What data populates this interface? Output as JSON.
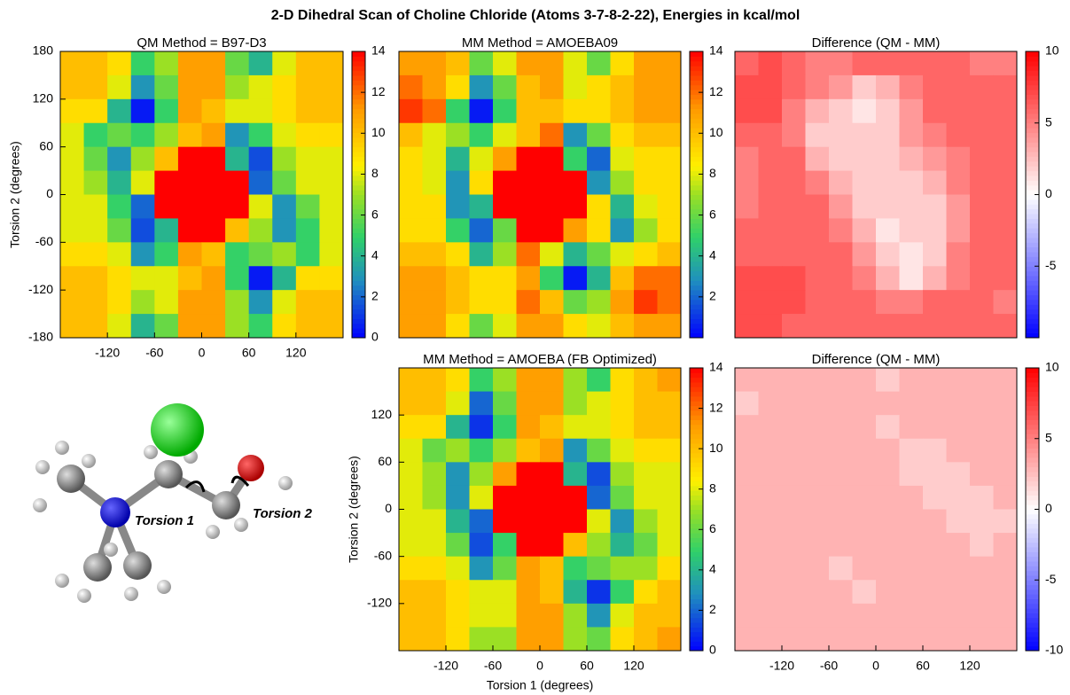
{
  "title": "2-D Dihedral Scan of Choline Chloride (Atoms 3-7-8-2-22), Energies in kcal/mol",
  "annotations": {
    "torsion1": "Torsion 1",
    "torsion2": "Torsion 2"
  },
  "chart_data": [
    {
      "type": "heatmap",
      "title": "QM Method = B97-D3",
      "ylabel": "Torsion 2 (degrees)",
      "colormap": "rainbow",
      "x": [
        -165,
        -135,
        -105,
        -75,
        -45,
        -15,
        15,
        45,
        75,
        105,
        135,
        165
      ],
      "y": [
        165,
        135,
        105,
        75,
        45,
        15,
        -15,
        -45,
        -75,
        -105,
        -135,
        -165
      ],
      "xlim": [
        -180,
        180
      ],
      "ylim": [
        -180,
        180
      ],
      "xticks": [
        -120,
        -60,
        0,
        60,
        120
      ],
      "yticks": [
        -180,
        -120,
        -60,
        0,
        60,
        120,
        180
      ],
      "zlim": [
        0,
        14
      ],
      "zticks": [
        0,
        2,
        4,
        6,
        8,
        10,
        12,
        14
      ],
      "z": [
        [
          10,
          10,
          9,
          5,
          7,
          11,
          11,
          6,
          4,
          8,
          10,
          10
        ],
        [
          10,
          10,
          8,
          3,
          6,
          11,
          11,
          7,
          8,
          9,
          10,
          10
        ],
        [
          9,
          9,
          4,
          0.5,
          5,
          11,
          10,
          8,
          8,
          9,
          10,
          10
        ],
        [
          8,
          5,
          6,
          5,
          7,
          10,
          11,
          3,
          5,
          8,
          9,
          9
        ],
        [
          8,
          6,
          3,
          7,
          10,
          14,
          14,
          4,
          1.5,
          7,
          8,
          8
        ],
        [
          8,
          7,
          4,
          8,
          14,
          14,
          14,
          14,
          2,
          6,
          8,
          8
        ],
        [
          8,
          8,
          5,
          2,
          14,
          14,
          14,
          14,
          8,
          3,
          6,
          8
        ],
        [
          8,
          8,
          6,
          1.5,
          4,
          14,
          14,
          10,
          7,
          3,
          5,
          8
        ],
        [
          9,
          9,
          8,
          3,
          5,
          11,
          10,
          5,
          6,
          7,
          5,
          8
        ],
        [
          10,
          10,
          9,
          8,
          8,
          10,
          11,
          5,
          0.5,
          4,
          9,
          9
        ],
        [
          10,
          10,
          9,
          7,
          8,
          11,
          11,
          7,
          3,
          8,
          10,
          10
        ],
        [
          10,
          10,
          8,
          4,
          6,
          11,
          11,
          7,
          5,
          9,
          10,
          10
        ]
      ]
    },
    {
      "type": "heatmap",
      "title": "MM Method = AMOEBA09",
      "colormap": "rainbow",
      "x": [
        -165,
        -135,
        -105,
        -75,
        -45,
        -15,
        15,
        45,
        75,
        105,
        135,
        165
      ],
      "y": [
        165,
        135,
        105,
        75,
        45,
        15,
        -15,
        -45,
        -75,
        -105,
        -135,
        -165
      ],
      "xlim": [
        -180,
        180
      ],
      "ylim": [
        -180,
        180
      ],
      "zlim": [
        0,
        14
      ],
      "zticks": [
        2,
        4,
        6,
        8,
        10,
        12,
        14
      ],
      "z": [
        [
          11,
          11,
          10,
          6,
          8,
          11,
          11,
          8,
          6,
          9,
          11,
          11
        ],
        [
          12,
          11,
          9,
          3,
          6,
          10,
          11,
          8,
          9,
          10,
          11,
          11
        ],
        [
          13,
          12,
          5,
          0.5,
          5,
          10,
          10,
          9,
          9,
          10,
          11,
          11
        ],
        [
          10,
          8,
          7,
          5,
          8,
          10,
          12,
          3,
          6,
          9,
          10,
          10
        ],
        [
          9,
          8,
          4,
          8,
          11,
          14,
          14,
          5,
          2,
          8,
          9,
          9
        ],
        [
          9,
          8,
          3,
          9,
          14,
          14,
          14,
          14,
          3,
          7,
          9,
          9
        ],
        [
          9,
          9,
          3,
          4,
          14,
          14,
          14,
          14,
          9,
          4,
          8,
          9
        ],
        [
          9,
          9,
          5,
          2,
          6,
          14,
          14,
          11,
          9,
          3,
          7,
          9
        ],
        [
          10,
          10,
          9,
          4,
          7,
          12,
          8,
          4,
          6,
          8,
          9,
          10
        ],
        [
          11,
          11,
          10,
          9,
          9,
          11,
          5,
          0.5,
          4,
          10,
          12,
          12
        ],
        [
          11,
          11,
          10,
          9,
          9,
          12,
          10,
          6,
          7,
          11,
          13,
          12
        ],
        [
          11,
          11,
          9,
          6,
          8,
          11,
          11,
          9,
          8,
          10,
          11,
          11
        ]
      ]
    },
    {
      "type": "heatmap",
      "title": "Difference (QM - MM)",
      "colormap": "diverging",
      "x": [
        -165,
        -135,
        -105,
        -75,
        -45,
        -15,
        15,
        45,
        75,
        105,
        135,
        165
      ],
      "y": [
        165,
        135,
        105,
        75,
        45,
        15,
        -15,
        -45,
        -75,
        -105,
        -135,
        -165
      ],
      "xlim": [
        -180,
        180
      ],
      "ylim": [
        -180,
        180
      ],
      "zlim": [
        -10,
        10
      ],
      "zticks": [
        -5,
        0,
        5,
        10
      ],
      "z": [
        [
          6,
          7,
          6,
          5,
          5,
          6,
          6,
          6,
          6,
          6,
          5,
          5
        ],
        [
          7,
          7,
          6,
          5,
          4,
          2,
          3,
          5,
          6,
          6,
          6,
          6
        ],
        [
          7,
          7,
          5,
          3,
          2,
          1,
          2,
          4,
          6,
          6,
          6,
          6
        ],
        [
          6,
          6,
          5,
          2,
          2,
          2,
          2,
          4,
          5,
          6,
          6,
          6
        ],
        [
          5,
          6,
          6,
          3,
          2,
          2,
          2,
          3,
          4,
          5,
          6,
          6
        ],
        [
          5,
          6,
          6,
          5,
          3,
          2,
          2,
          2,
          3,
          5,
          6,
          6
        ],
        [
          5,
          6,
          6,
          6,
          4,
          2,
          2,
          2,
          2,
          4,
          6,
          6
        ],
        [
          6,
          6,
          6,
          6,
          5,
          3,
          1,
          2,
          2,
          4,
          6,
          6
        ],
        [
          6,
          6,
          6,
          6,
          6,
          4,
          2,
          1,
          2,
          5,
          6,
          6
        ],
        [
          7,
          7,
          7,
          6,
          6,
          5,
          3,
          1,
          3,
          5,
          6,
          6
        ],
        [
          7,
          7,
          7,
          6,
          6,
          6,
          5,
          5,
          6,
          6,
          6,
          5
        ],
        [
          7,
          7,
          6,
          6,
          6,
          6,
          6,
          6,
          6,
          6,
          6,
          6
        ]
      ]
    },
    {
      "type": "heatmap",
      "title": "MM Method = AMOEBA (FB Optimized)",
      "xlabel": "Torsion 1 (degrees)",
      "ylabel": "Torsion 2 (degrees)",
      "colormap": "rainbow",
      "x": [
        -165,
        -135,
        -105,
        -75,
        -45,
        -15,
        15,
        45,
        75,
        105,
        135,
        165
      ],
      "y": [
        165,
        135,
        105,
        75,
        45,
        15,
        -15,
        -45,
        -75,
        -105,
        -135,
        -165
      ],
      "xlim": [
        -180,
        180
      ],
      "ylim": [
        -180,
        180
      ],
      "xticks": [
        -120,
        -60,
        0,
        60,
        120
      ],
      "yticks": [
        -120,
        -60,
        0,
        60,
        120
      ],
      "zlim": [
        0,
        14
      ],
      "zticks": [
        0,
        2,
        4,
        6,
        8,
        10,
        12,
        14
      ],
      "z": [
        [
          10,
          10,
          9,
          5,
          7,
          11,
          11,
          7,
          5,
          9,
          10,
          11
        ],
        [
          10,
          10,
          8,
          2,
          6,
          11,
          11,
          7,
          8,
          9,
          10,
          10
        ],
        [
          9,
          9,
          4,
          1,
          5,
          11,
          10,
          8,
          8,
          9,
          10,
          10
        ],
        [
          8,
          6,
          7,
          5,
          7,
          10,
          11,
          3,
          6,
          8,
          9,
          9
        ],
        [
          8,
          7,
          3,
          7,
          11,
          14,
          14,
          4,
          1.5,
          7,
          8,
          8
        ],
        [
          8,
          7,
          3,
          8,
          14,
          14,
          14,
          14,
          2,
          6,
          8,
          8
        ],
        [
          8,
          8,
          4,
          2,
          14,
          14,
          14,
          14,
          8,
          3,
          7,
          8
        ],
        [
          8,
          8,
          6,
          1.5,
          5,
          14,
          14,
          10,
          7,
          4,
          6,
          8
        ],
        [
          9,
          9,
          8,
          3,
          6,
          11,
          10,
          5,
          6,
          7,
          7,
          9
        ],
        [
          10,
          10,
          9,
          8,
          8,
          11,
          10,
          4,
          1,
          5,
          9,
          10
        ],
        [
          10,
          10,
          9,
          8,
          8,
          11,
          11,
          7,
          3,
          8,
          10,
          10
        ],
        [
          10,
          10,
          9,
          7,
          7,
          11,
          11,
          7,
          6,
          9,
          10,
          11
        ]
      ]
    },
    {
      "type": "heatmap",
      "title": "Difference (QM - MM)",
      "colormap": "diverging",
      "x": [
        -165,
        -135,
        -105,
        -75,
        -45,
        -15,
        15,
        45,
        75,
        105,
        135,
        165
      ],
      "y": [
        165,
        135,
        105,
        75,
        45,
        15,
        -15,
        -45,
        -75,
        -105,
        -135,
        -165
      ],
      "xlim": [
        -180,
        180
      ],
      "ylim": [
        -180,
        180
      ],
      "xticks": [
        -120,
        -60,
        0,
        60,
        120
      ],
      "zlim": [
        -10,
        10
      ],
      "zticks": [
        -10,
        -5,
        0,
        5,
        10
      ],
      "z": [
        [
          3,
          3,
          3,
          3,
          3,
          3,
          2,
          3,
          3,
          3,
          3,
          3
        ],
        [
          2,
          3,
          3,
          3,
          3,
          3,
          3,
          3,
          3,
          3,
          3,
          3
        ],
        [
          3,
          3,
          3,
          3,
          3,
          3,
          2,
          3,
          3,
          3,
          3,
          3
        ],
        [
          3,
          3,
          3,
          3,
          3,
          3,
          3,
          2,
          2,
          3,
          3,
          3
        ],
        [
          3,
          3,
          3,
          3,
          3,
          3,
          3,
          2,
          2,
          2,
          3,
          3
        ],
        [
          3,
          3,
          3,
          3,
          3,
          3,
          3,
          3,
          2,
          2,
          2,
          3
        ],
        [
          3,
          3,
          3,
          3,
          3,
          3,
          3,
          3,
          3,
          2,
          2,
          2
        ],
        [
          3,
          3,
          3,
          3,
          3,
          3,
          3,
          3,
          3,
          3,
          2,
          3
        ],
        [
          3,
          3,
          3,
          3,
          2,
          3,
          3,
          3,
          3,
          3,
          3,
          3
        ],
        [
          3,
          3,
          3,
          3,
          3,
          2,
          3,
          3,
          3,
          3,
          3,
          3
        ],
        [
          3,
          3,
          3,
          3,
          3,
          3,
          3,
          3,
          3,
          3,
          3,
          3
        ],
        [
          3,
          3,
          3,
          3,
          3,
          3,
          3,
          3,
          3,
          3,
          3,
          3
        ]
      ]
    }
  ]
}
